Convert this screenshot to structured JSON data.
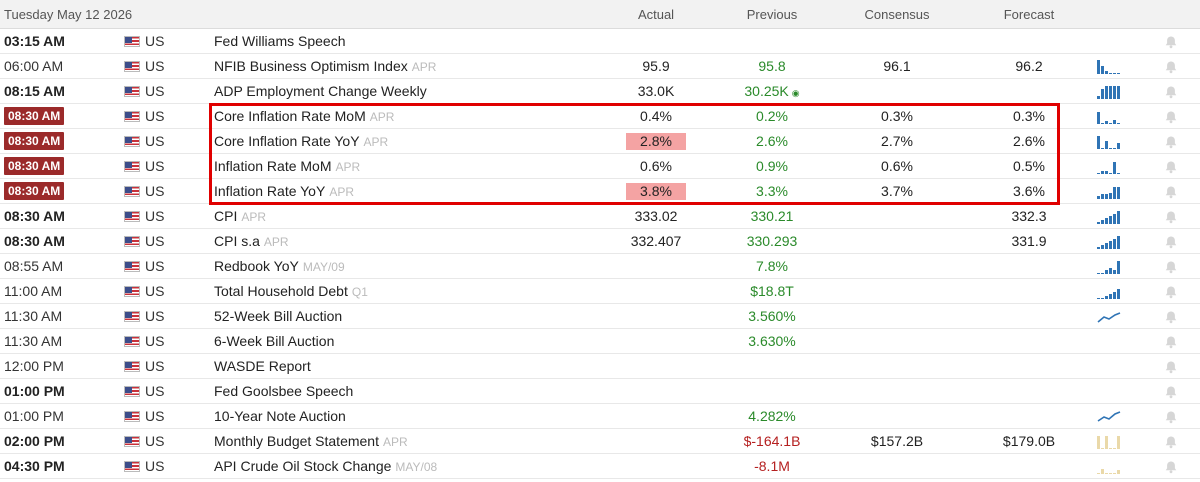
{
  "header": {
    "date": "Tuesday May 12 2026",
    "actual": "Actual",
    "previous": "Previous",
    "consensus": "Consensus",
    "forecast": "Forecast"
  },
  "colors": {
    "badge": "#9b2a2a",
    "positive": "#2a8a2a",
    "negative": "#b52020",
    "highlight": "#f4a3a3",
    "box": "#e00000",
    "chart_blue": "#2f74b5",
    "chart_tan": "#ead9a9"
  },
  "rows": [
    {
      "time": "03:15 AM",
      "country": "US",
      "event": "Fed Williams Speech",
      "ref": "",
      "actual": "",
      "previous": "",
      "consensus": "",
      "forecast": ""
    },
    {
      "time": "06:00 AM",
      "country": "US",
      "event": "NFIB Business Optimism Index",
      "ref": "APR",
      "actual": "95.9",
      "previous": "95.8",
      "consensus": "96.1",
      "forecast": "96.2"
    },
    {
      "time": "08:15 AM",
      "country": "US",
      "event": "ADP Employment Change Weekly",
      "ref": "",
      "actual": "33.0K",
      "previous": "30.25K",
      "consensus": "",
      "forecast": ""
    },
    {
      "time": "08:30 AM",
      "country": "US",
      "event": "Core Inflation Rate MoM",
      "ref": "APR",
      "actual": "0.4%",
      "previous": "0.2%",
      "consensus": "0.3%",
      "forecast": "0.3%"
    },
    {
      "time": "08:30 AM",
      "country": "US",
      "event": "Core Inflation Rate YoY",
      "ref": "APR",
      "actual": "2.8%",
      "previous": "2.6%",
      "consensus": "2.7%",
      "forecast": "2.6%"
    },
    {
      "time": "08:30 AM",
      "country": "US",
      "event": "Inflation Rate MoM",
      "ref": "APR",
      "actual": "0.6%",
      "previous": "0.9%",
      "consensus": "0.6%",
      "forecast": "0.5%"
    },
    {
      "time": "08:30 AM",
      "country": "US",
      "event": "Inflation Rate YoY",
      "ref": "APR",
      "actual": "3.8%",
      "previous": "3.3%",
      "consensus": "3.7%",
      "forecast": "3.6%"
    },
    {
      "time": "08:30 AM",
      "country": "US",
      "event": "CPI",
      "ref": "APR",
      "actual": "333.02",
      "previous": "330.21",
      "consensus": "",
      "forecast": "332.3"
    },
    {
      "time": "08:30 AM",
      "country": "US",
      "event": "CPI s.a",
      "ref": "APR",
      "actual": "332.407",
      "previous": "330.293",
      "consensus": "",
      "forecast": "331.9"
    },
    {
      "time": "08:55 AM",
      "country": "US",
      "event": "Redbook YoY",
      "ref": "MAY/09",
      "actual": "",
      "previous": "7.8%",
      "consensus": "",
      "forecast": ""
    },
    {
      "time": "11:00 AM",
      "country": "US",
      "event": "Total Household Debt",
      "ref": "Q1",
      "actual": "",
      "previous": "$18.8T",
      "consensus": "",
      "forecast": ""
    },
    {
      "time": "11:30 AM",
      "country": "US",
      "event": "52-Week Bill Auction",
      "ref": "",
      "actual": "",
      "previous": "3.560%",
      "consensus": "",
      "forecast": ""
    },
    {
      "time": "11:30 AM",
      "country": "US",
      "event": "6-Week Bill Auction",
      "ref": "",
      "actual": "",
      "previous": "3.630%",
      "consensus": "",
      "forecast": ""
    },
    {
      "time": "12:00 PM",
      "country": "US",
      "event": "WASDE Report",
      "ref": "",
      "actual": "",
      "previous": "",
      "consensus": "",
      "forecast": ""
    },
    {
      "time": "01:00 PM",
      "country": "US",
      "event": "Fed Goolsbee Speech",
      "ref": "",
      "actual": "",
      "previous": "",
      "consensus": "",
      "forecast": ""
    },
    {
      "time": "01:00 PM",
      "country": "US",
      "event": "10-Year Note Auction",
      "ref": "",
      "actual": "",
      "previous": "4.282%",
      "consensus": "",
      "forecast": ""
    },
    {
      "time": "02:00 PM",
      "country": "US",
      "event": "Monthly Budget Statement",
      "ref": "APR",
      "actual": "",
      "previous": "$-164.1B",
      "consensus": "$157.2B",
      "forecast": "$179.0B"
    },
    {
      "time": "04:30 PM",
      "country": "US",
      "event": "API Crude Oil Stock Change",
      "ref": "MAY/08",
      "actual": "",
      "previous": "-8.1M",
      "consensus": "",
      "forecast": ""
    }
  ],
  "row_styles": [
    {
      "time_style": "bold",
      "previous_color": "",
      "actual_highlight": false,
      "revised": false,
      "mini_chart": "none",
      "bell": true
    },
    {
      "time_style": "normal",
      "previous_color": "green",
      "actual_highlight": false,
      "revised": false,
      "mini_chart": "bars-a",
      "bell": true
    },
    {
      "time_style": "bold",
      "previous_color": "green",
      "actual_highlight": false,
      "revised": true,
      "mini_chart": "bars-b",
      "bell": true
    },
    {
      "time_style": "badge",
      "previous_color": "green",
      "actual_highlight": false,
      "revised": false,
      "mini_chart": "bars-c",
      "bell": true
    },
    {
      "time_style": "badge",
      "previous_color": "green",
      "actual_highlight": true,
      "revised": false,
      "mini_chart": "bars-d",
      "bell": true
    },
    {
      "time_style": "badge",
      "previous_color": "green",
      "actual_highlight": false,
      "revised": false,
      "mini_chart": "bars-e",
      "bell": true
    },
    {
      "time_style": "badge",
      "previous_color": "green",
      "actual_highlight": true,
      "revised": false,
      "mini_chart": "bars-f",
      "bell": true
    },
    {
      "time_style": "bold",
      "previous_color": "green",
      "actual_highlight": false,
      "revised": false,
      "mini_chart": "bars-g",
      "bell": true
    },
    {
      "time_style": "bold",
      "previous_color": "green",
      "actual_highlight": false,
      "revised": false,
      "mini_chart": "bars-g",
      "bell": true
    },
    {
      "time_style": "normal",
      "previous_color": "green",
      "actual_highlight": false,
      "revised": false,
      "mini_chart": "bars-h",
      "bell": true
    },
    {
      "time_style": "normal",
      "previous_color": "green",
      "actual_highlight": false,
      "revised": false,
      "mini_chart": "bars-i",
      "bell": true
    },
    {
      "time_style": "normal",
      "previous_color": "green",
      "actual_highlight": false,
      "revised": false,
      "mini_chart": "line-a",
      "bell": true
    },
    {
      "time_style": "normal",
      "previous_color": "green",
      "actual_highlight": false,
      "revised": false,
      "mini_chart": "none",
      "bell": true
    },
    {
      "time_style": "normal",
      "previous_color": "",
      "actual_highlight": false,
      "revised": false,
      "mini_chart": "none",
      "bell": true
    },
    {
      "time_style": "bold",
      "previous_color": "",
      "actual_highlight": false,
      "revised": false,
      "mini_chart": "none",
      "bell": true
    },
    {
      "time_style": "normal",
      "previous_color": "green",
      "actual_highlight": false,
      "revised": false,
      "mini_chart": "line-b",
      "bell": true
    },
    {
      "time_style": "bold",
      "previous_color": "red",
      "actual_highlight": false,
      "revised": false,
      "mini_chart": "bars-tan-a",
      "bell": true
    },
    {
      "time_style": "bold",
      "previous_color": "red",
      "actual_highlight": false,
      "revised": false,
      "mini_chart": "bars-tan-b",
      "bell": true
    }
  ],
  "icons": {
    "flag": "us-flag-icon",
    "bell": "bell-icon",
    "revised": "revised-dot-icon",
    "chart": "mini-chart-icon"
  },
  "highlighted_rows": [
    3,
    4,
    5,
    6
  ]
}
